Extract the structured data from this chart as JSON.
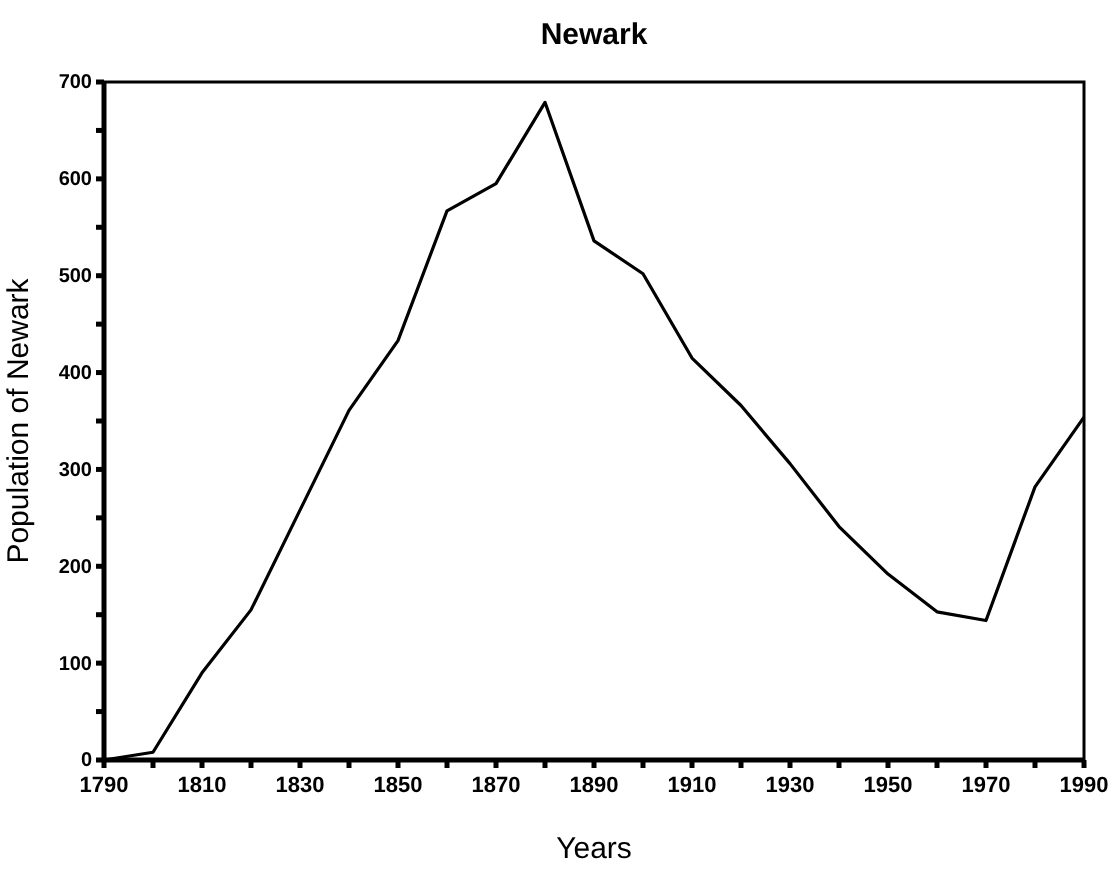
{
  "chart_data": {
    "type": "line",
    "title": "Newark",
    "xlabel": "Years",
    "ylabel": "Population of Newark",
    "x": [
      1790,
      1800,
      1810,
      1820,
      1830,
      1840,
      1850,
      1860,
      1870,
      1880,
      1890,
      1900,
      1910,
      1920,
      1930,
      1940,
      1950,
      1960,
      1970,
      1980,
      1990
    ],
    "series": [
      {
        "color": "#000000",
        "values": [
          0,
          8,
          90,
          155,
          258,
          361,
          433,
          567,
          595,
          679,
          536,
          502,
          415,
          366,
          306,
          241,
          192,
          153,
          144,
          282,
          354
        ]
      }
    ],
    "xlim": [
      1790,
      1990
    ],
    "xticks": [
      1790,
      {
        "value": 1800,
        "label": null
      },
      1810,
      {
        "value": 1820,
        "label": null
      },
      1830,
      {
        "value": 1840,
        "label": null
      },
      1850,
      {
        "value": 1860,
        "label": null
      },
      1870,
      {
        "value": 1880,
        "label": null
      },
      1890,
      {
        "value": 1900,
        "label": null
      },
      1910,
      {
        "value": 1920,
        "label": null
      },
      1930,
      {
        "value": 1940,
        "label": null
      },
      1950,
      {
        "value": 1960,
        "label": null
      },
      1970,
      {
        "value": 1980,
        "label": null
      },
      1990
    ],
    "ylim": [
      0,
      700
    ],
    "yticks": [
      0,
      {
        "value": 50,
        "label": null
      },
      100,
      {
        "value": 150,
        "label": null
      },
      200,
      {
        "value": 250,
        "label": null
      },
      300,
      {
        "value": 350,
        "label": null
      },
      400,
      {
        "value": 450,
        "label": null
      },
      500,
      {
        "value": 550,
        "label": null
      },
      600,
      {
        "value": 650,
        "label": null
      },
      700
    ],
    "grid": false,
    "marker": "none",
    "line_style": "solid"
  }
}
